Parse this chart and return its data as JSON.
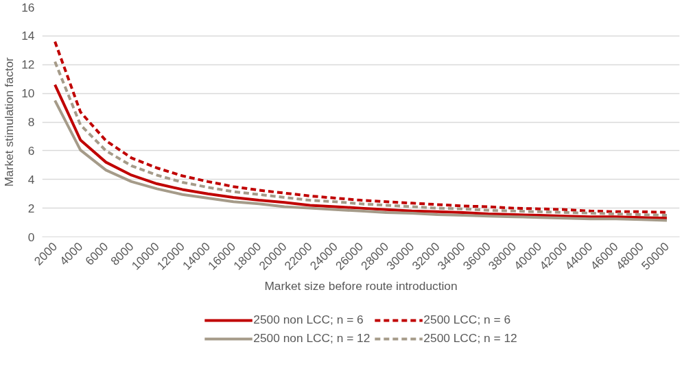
{
  "chart_data": {
    "type": "line",
    "xlabel": "Market size before route introduction",
    "ylabel": "Market stimulation factor",
    "categories": [
      "2000",
      "4000",
      "6000",
      "8000",
      "10000",
      "12000",
      "14000",
      "16000",
      "18000",
      "20000",
      "22000",
      "24000",
      "26000",
      "28000",
      "30000",
      "32000",
      "34000",
      "36000",
      "38000",
      "40000",
      "42000",
      "44000",
      "46000",
      "48000",
      "50000"
    ],
    "ylim": [
      0,
      16
    ],
    "yticks": [
      0,
      2,
      4,
      6,
      8,
      10,
      12,
      14,
      16
    ],
    "grid": "y",
    "legend": "bottom",
    "marker": "none",
    "series": [
      {
        "name": "2500 non LCC; n = 6",
        "color": "#c00000",
        "line_style": "solid",
        "values": [
          10.6,
          6.75,
          5.2,
          4.3,
          3.7,
          3.3,
          3.0,
          2.75,
          2.55,
          2.4,
          2.2,
          2.1,
          2.0,
          1.9,
          1.8,
          1.75,
          1.7,
          1.6,
          1.55,
          1.5,
          1.45,
          1.4,
          1.4,
          1.35,
          1.3
        ]
      },
      {
        "name": "2500 LCC; n = 6",
        "color": "#c00000",
        "line_style": "dashed",
        "values": [
          13.6,
          8.7,
          6.7,
          5.5,
          4.8,
          4.25,
          3.85,
          3.5,
          3.25,
          3.05,
          2.85,
          2.7,
          2.55,
          2.45,
          2.35,
          2.25,
          2.15,
          2.1,
          2.0,
          1.95,
          1.9,
          1.8,
          1.75,
          1.75,
          1.7
        ]
      },
      {
        "name": "2500 non LCC; n = 12",
        "color": "#a59b89",
        "line_style": "solid",
        "values": [
          9.5,
          6.05,
          4.65,
          3.85,
          3.35,
          2.95,
          2.7,
          2.45,
          2.3,
          2.1,
          2.0,
          1.9,
          1.8,
          1.7,
          1.65,
          1.55,
          1.5,
          1.45,
          1.4,
          1.35,
          1.3,
          1.25,
          1.25,
          1.2,
          1.15
        ]
      },
      {
        "name": "2500 LCC; n = 12",
        "color": "#a59b89",
        "line_style": "dashed",
        "values": [
          12.2,
          7.8,
          6.0,
          4.95,
          4.3,
          3.8,
          3.45,
          3.15,
          2.95,
          2.75,
          2.55,
          2.45,
          2.3,
          2.2,
          2.1,
          2.0,
          1.95,
          1.85,
          1.8,
          1.75,
          1.7,
          1.65,
          1.6,
          1.55,
          1.5
        ]
      }
    ]
  }
}
